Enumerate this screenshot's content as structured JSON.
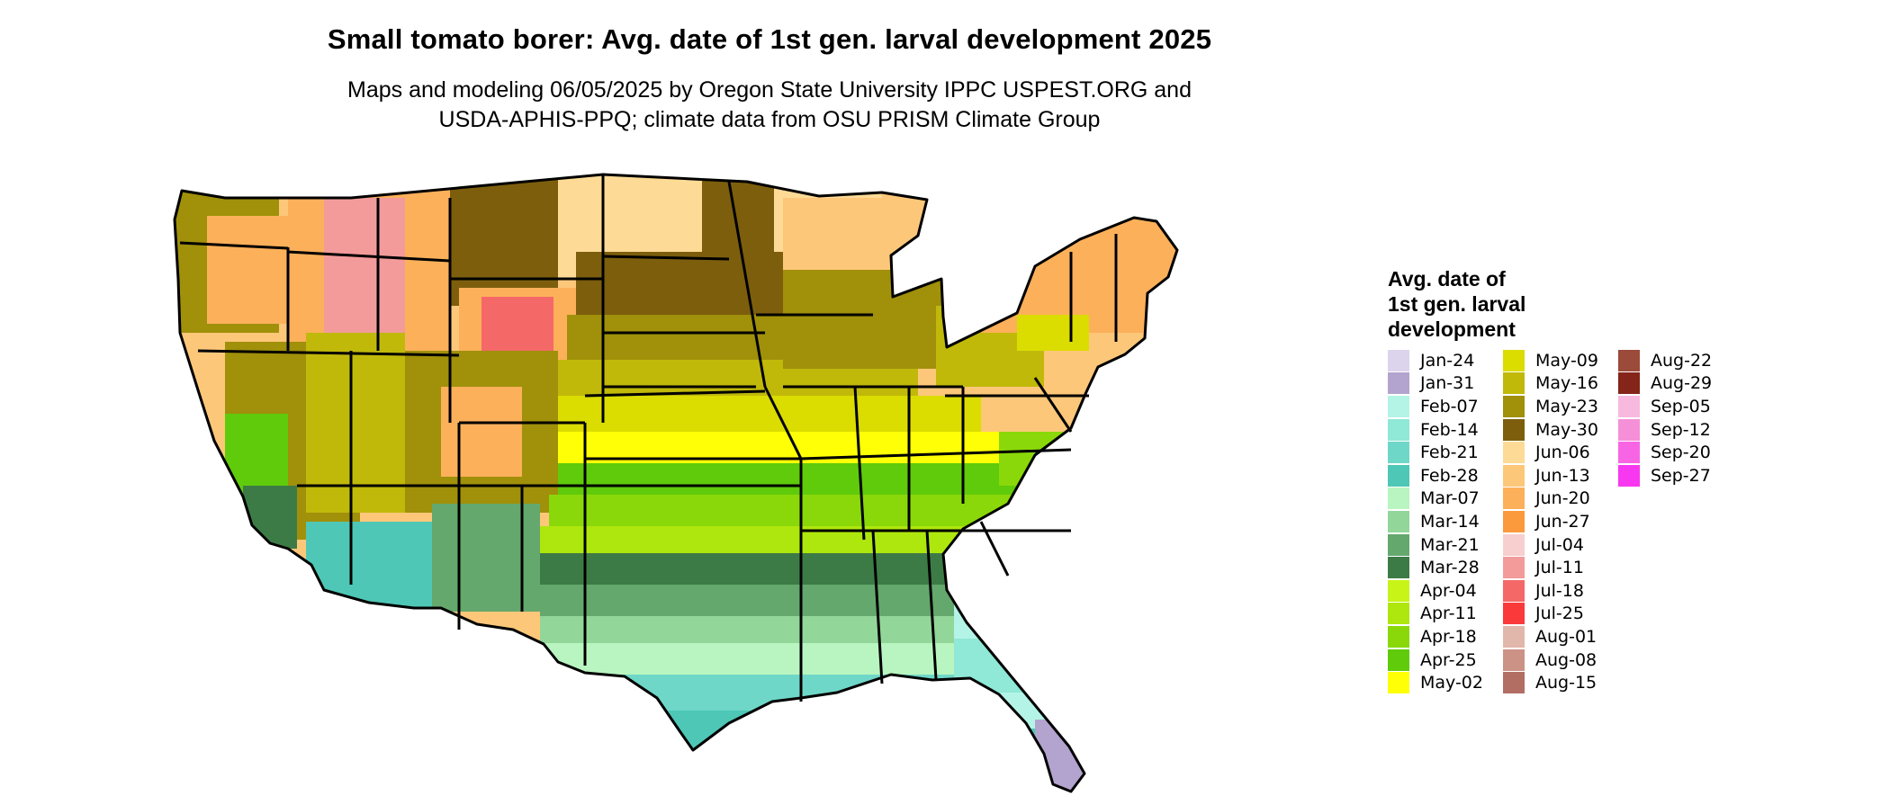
{
  "title": "Small tomato borer: Avg. date of 1st gen. larval development 2025",
  "subtitle_line1": "Maps and modeling 06/05/2025 by Oregon State University IPPC USPEST.ORG and",
  "subtitle_line2": "USDA-APHIS-PPQ; climate data from OSU PRISM Climate Group",
  "legend": {
    "title_line1": "Avg. date of",
    "title_line2": "1st gen. larval",
    "title_line3": "development",
    "entries": [
      {
        "label": "Jan-24",
        "color": "#dcd3ec"
      },
      {
        "label": "Jan-31",
        "color": "#b3a3cf"
      },
      {
        "label": "Feb-07",
        "color": "#b4f4e6"
      },
      {
        "label": "Feb-14",
        "color": "#90e8d6"
      },
      {
        "label": "Feb-21",
        "color": "#6fd7c8"
      },
      {
        "label": "Feb-28",
        "color": "#4ec7b6"
      },
      {
        "label": "Mar-07",
        "color": "#b9f5c0"
      },
      {
        "label": "Mar-14",
        "color": "#93d69a"
      },
      {
        "label": "Mar-21",
        "color": "#64a86d"
      },
      {
        "label": "Mar-28",
        "color": "#3d7b46"
      },
      {
        "label": "Apr-04",
        "color": "#c8f418"
      },
      {
        "label": "Apr-11",
        "color": "#aee70d"
      },
      {
        "label": "Apr-18",
        "color": "#8ad809"
      },
      {
        "label": "Apr-25",
        "color": "#5fcb0b"
      },
      {
        "label": "May-02",
        "color": "#ffff05"
      },
      {
        "label": "May-09",
        "color": "#dbdc00"
      },
      {
        "label": "May-16",
        "color": "#c0b90a"
      },
      {
        "label": "May-23",
        "color": "#a0900a"
      },
      {
        "label": "May-30",
        "color": "#7c5e0d"
      },
      {
        "label": "Jun-06",
        "color": "#fddb96"
      },
      {
        "label": "Jun-13",
        "color": "#fdc77a"
      },
      {
        "label": "Jun-20",
        "color": "#fcb05a"
      },
      {
        "label": "Jun-27",
        "color": "#fb9a3c"
      },
      {
        "label": "Jul-04",
        "color": "#f7cfcf"
      },
      {
        "label": "Jul-11",
        "color": "#f39b9b"
      },
      {
        "label": "Jul-18",
        "color": "#f46868"
      },
      {
        "label": "Jul-25",
        "color": "#fa3a3a"
      },
      {
        "label": "Aug-01",
        "color": "#e2b7ab"
      },
      {
        "label": "Aug-08",
        "color": "#cc9286"
      },
      {
        "label": "Aug-15",
        "color": "#b36e63"
      },
      {
        "label": "Aug-22",
        "color": "#9c4a3a"
      },
      {
        "label": "Aug-29",
        "color": "#85251a"
      },
      {
        "label": "Sep-05",
        "color": "#f8b9de"
      },
      {
        "label": "Sep-12",
        "color": "#f590d8"
      },
      {
        "label": "Sep-20",
        "color": "#f865e4"
      },
      {
        "label": "Sep-27",
        "color": "#f838f0"
      }
    ]
  }
}
